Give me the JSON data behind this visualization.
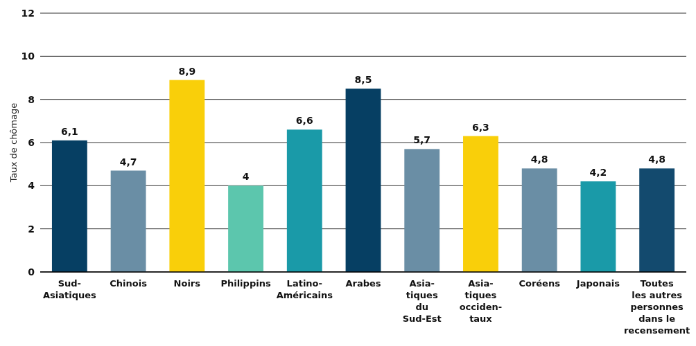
{
  "chart_data": {
    "type": "bar",
    "ylabel": "Taux de chômage",
    "categories": [
      "Sud-\nAsiatiques",
      "Chinois",
      "Noirs",
      "Philippins",
      "Latino-\nAméricains",
      "Arabes",
      "Asia-\ntiques\ndu\nSud-Est",
      "Asia-\ntiques\nocciden-\ntaux",
      "Coréens",
      "Japonais",
      "Toutes\nles autres\npersonnes\ndans le\nrecensement"
    ],
    "values": [
      6.1,
      4.7,
      8.9,
      4,
      6.6,
      8.5,
      5.7,
      6.3,
      4.8,
      4.2,
      4.8
    ],
    "colors": [
      "#063f63",
      "#6a8ea5",
      "#f9cf0a",
      "#5cc6ad",
      "#1a9aa8",
      "#063f63",
      "#6a8ea5",
      "#f9cf0a",
      "#6a8ea5",
      "#1a9aa8",
      "#134a6e"
    ],
    "value_labels": [
      "6,1",
      "4,7",
      "8,9",
      "4",
      "6,6",
      "8,5",
      "5,7",
      "6,3",
      "4,8",
      "4,2",
      "4,8"
    ],
    "ylim": [
      0,
      12
    ],
    "yticks": [
      0,
      2,
      4,
      6,
      8,
      10,
      12
    ],
    "grid": "y"
  }
}
